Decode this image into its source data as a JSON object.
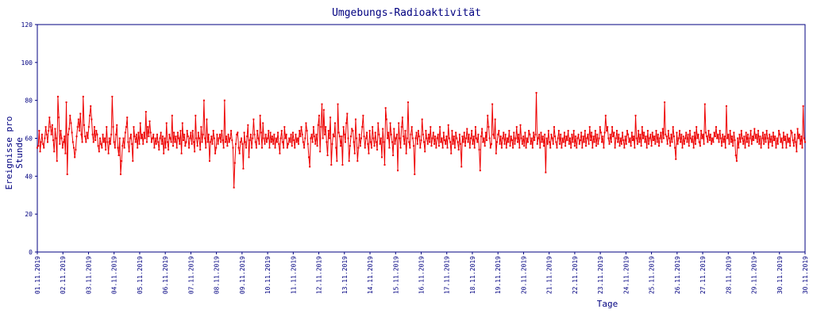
{
  "chart_data": {
    "type": "line",
    "title": "Umgebungs-Radioaktivität",
    "xlabel": "Tage",
    "ylabel": "Ereignisse pro Stunde",
    "ylim": [
      0,
      120
    ],
    "yticks": [
      0,
      20,
      40,
      60,
      80,
      100,
      120
    ],
    "x_tick_labels": [
      "01.11.2019",
      "02.11.2019",
      "03.11.2019",
      "04.11.2019",
      "05.11.2019",
      "06.11.2019",
      "07.11.2019",
      "08.11.2019",
      "09.11.2019",
      "10.11.2019",
      "11.11.2019",
      "12.11.2019",
      "13.11.2019",
      "14.11.2019",
      "15.11.2019",
      "16.11.2019",
      "17.11.2019",
      "18.11.2019",
      "19.11.2019",
      "20.11.2019",
      "21.11.2019",
      "22.11.2019",
      "23.11.2019",
      "24.11.2019",
      "25.11.2019",
      "26.11.2019",
      "27.11.2019",
      "28.11.2019",
      "29.11.2019",
      "30.11.2019",
      "30.11.2019"
    ],
    "sampling": "hourly",
    "grid": false,
    "series": [
      {
        "color": "#ee0000",
        "values": [
          55,
          56,
          64,
          53,
          58,
          62,
          57,
          55,
          60,
          66,
          62,
          58,
          64,
          71,
          66,
          62,
          67,
          59,
          53,
          65,
          60,
          48,
          82,
          71,
          57,
          64,
          60,
          55,
          58,
          61,
          52,
          79,
          41,
          62,
          65,
          72,
          68,
          63,
          58,
          55,
          50,
          54,
          61,
          66,
          70,
          64,
          73,
          62,
          58,
          82,
          67,
          61,
          58,
          63,
          60,
          66,
          72,
          77,
          70,
          62,
          58,
          66,
          59,
          64,
          62,
          56,
          53,
          60,
          57,
          55,
          62,
          58,
          60,
          54,
          66,
          58,
          52,
          60,
          57,
          62,
          82,
          66,
          58,
          55,
          62,
          67,
          55,
          51,
          60,
          41,
          48,
          56,
          60,
          55,
          63,
          66,
          71,
          58,
          53,
          60,
          62,
          57,
          48,
          66,
          61,
          58,
          62,
          55,
          63,
          57,
          68,
          60,
          62,
          57,
          63,
          60,
          74,
          58,
          66,
          61,
          69,
          63,
          58,
          60,
          62,
          55,
          60,
          57,
          62,
          58,
          54,
          60,
          63,
          57,
          61,
          52,
          60,
          55,
          68,
          58,
          54,
          62,
          60,
          58,
          72,
          56,
          63,
          58,
          61,
          55,
          63,
          60,
          57,
          64,
          52,
          68,
          59,
          62,
          56,
          58,
          64,
          61,
          55,
          60,
          63,
          57,
          64,
          58,
          53,
          72,
          60,
          56,
          63,
          60,
          54,
          66,
          58,
          62,
          80,
          60,
          55,
          70,
          58,
          62,
          48,
          58,
          61,
          57,
          64,
          60,
          52,
          55,
          62,
          57,
          60,
          62,
          58,
          64,
          59,
          55,
          80,
          58,
          61,
          56,
          62,
          58,
          60,
          64,
          59,
          55,
          34,
          47,
          57,
          62,
          63,
          55,
          52,
          58,
          60,
          57,
          44,
          63,
          58,
          55,
          61,
          67,
          50,
          59,
          62,
          55,
          60,
          70,
          62,
          58,
          55,
          64,
          60,
          57,
          72,
          63,
          55,
          68,
          60,
          57,
          62,
          58,
          60,
          64,
          55,
          63,
          58,
          61,
          57,
          62,
          55,
          60,
          58,
          63,
          57,
          52,
          60,
          64,
          58,
          55,
          66,
          60,
          62,
          55,
          57,
          60,
          58,
          62,
          56,
          63,
          59,
          55,
          62,
          58,
          60,
          57,
          64,
          61,
          66,
          62,
          58,
          55,
          60,
          68,
          64,
          57,
          50,
          45,
          60,
          62,
          58,
          66,
          61,
          57,
          62,
          56,
          67,
          72,
          53,
          66,
          78,
          60,
          75,
          62,
          66,
          58,
          51,
          64,
          60,
          71,
          46,
          57,
          62,
          61,
          68,
          55,
          48,
          78,
          63,
          61,
          56,
          61,
          46,
          66,
          62,
          58,
          68,
          73,
          60,
          48,
          56,
          61,
          65,
          64,
          58,
          52,
          70,
          60,
          48,
          55,
          62,
          56,
          60,
          66,
          72,
          61,
          55,
          60,
          63,
          57,
          52,
          64,
          58,
          55,
          66,
          60,
          56,
          63,
          58,
          54,
          68,
          62,
          57,
          60,
          50,
          65,
          58,
          46,
          76,
          70,
          60,
          63,
          55,
          68,
          62,
          58,
          51,
          65,
          57,
          60,
          62,
          43,
          68,
          60,
          55,
          66,
          71,
          61,
          57,
          64,
          52,
          60,
          79,
          58,
          55,
          62,
          66,
          60,
          56,
          41,
          60,
          63,
          57,
          64,
          61,
          55,
          59,
          70,
          62,
          58,
          53,
          64,
          60,
          57,
          62,
          58,
          66,
          56,
          60,
          63,
          57,
          61,
          55,
          60,
          62,
          56,
          66,
          58,
          60,
          55,
          63,
          59,
          57,
          61,
          55,
          67,
          60,
          58,
          52,
          64,
          57,
          61,
          55,
          63,
          60,
          58,
          54,
          62,
          57,
          45,
          61,
          58,
          63,
          56,
          60,
          65,
          58,
          62,
          55,
          60,
          64,
          57,
          61,
          55,
          66,
          60,
          58,
          62,
          54,
          43,
          61,
          65,
          58,
          60,
          56,
          63,
          59,
          72,
          66,
          60,
          55,
          57,
          78,
          62,
          60,
          70,
          52,
          58,
          62,
          64,
          57,
          61,
          55,
          60,
          63,
          57,
          62,
          55,
          60,
          58,
          64,
          56,
          61,
          59,
          55,
          63,
          57,
          60,
          66,
          58,
          62,
          55,
          67,
          60,
          57,
          61,
          56,
          63,
          55,
          60,
          58,
          64,
          62,
          57,
          60,
          55,
          63,
          59,
          62,
          84,
          57,
          60,
          62,
          55,
          63,
          58,
          61,
          56,
          62,
          42,
          60,
          57,
          64,
          58,
          55,
          62,
          60,
          57,
          66,
          61,
          58,
          55,
          60,
          64,
          57,
          62,
          55,
          60,
          58,
          63,
          56,
          61,
          59,
          64,
          57,
          60,
          55,
          62,
          58,
          64,
          56,
          61,
          55,
          60,
          62,
          57,
          59,
          63,
          55,
          61,
          58,
          64,
          56,
          60,
          62,
          57,
          66,
          59,
          63,
          55,
          61,
          58,
          64,
          56,
          62,
          57,
          60,
          66,
          63,
          58,
          61,
          55,
          63,
          72,
          64,
          66,
          60,
          57,
          62,
          58,
          66,
          61,
          63,
          55,
          60,
          64,
          58,
          62,
          56,
          60,
          57,
          63,
          59,
          55,
          61,
          57,
          64,
          62,
          58,
          60,
          56,
          63,
          59,
          61,
          55,
          72,
          60,
          57,
          64,
          58,
          62,
          56,
          66,
          60,
          63,
          58,
          61,
          55,
          64,
          57,
          60,
          62,
          56,
          63,
          59,
          61,
          57,
          64,
          58,
          62,
          56,
          60,
          63,
          58,
          65,
          60,
          79,
          62,
          61,
          57,
          64,
          60,
          56,
          62,
          58,
          66,
          61,
          55,
          49,
          63,
          57,
          60,
          64,
          58,
          62,
          55,
          61,
          57,
          60,
          63,
          58,
          62,
          56,
          64,
          60,
          58,
          61,
          55,
          63,
          57,
          66,
          60,
          62,
          58,
          56,
          64,
          60,
          62,
          57,
          78,
          63,
          61,
          58,
          64,
          59,
          62,
          57,
          60,
          58,
          63,
          61,
          66,
          60,
          62,
          58,
          64,
          60,
          56,
          62,
          58,
          61,
          55,
          77,
          60,
          62,
          57,
          64,
          58,
          61,
          56,
          63,
          59,
          51,
          48,
          60,
          55,
          62,
          58,
          64,
          60,
          57,
          61,
          55,
          63,
          58,
          62,
          56,
          60,
          64,
          57,
          61,
          59,
          65,
          60,
          62,
          58,
          64,
          57,
          61,
          55,
          60,
          63,
          57,
          62,
          58,
          64,
          60,
          55,
          62,
          58,
          61,
          56,
          63,
          59,
          61,
          55,
          60,
          57,
          64,
          62,
          58,
          60,
          55,
          63,
          59,
          61,
          55,
          62,
          58,
          60,
          56,
          64,
          63,
          59,
          56,
          62,
          58,
          53,
          65,
          60,
          62,
          57,
          61,
          55,
          77,
          60,
          58
        ]
      }
    ]
  }
}
